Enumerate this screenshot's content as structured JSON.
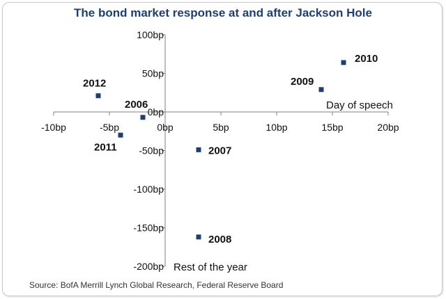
{
  "chart_data": {
    "type": "scatter",
    "title": "The bond market response at and after Jackson Hole",
    "xlabel": "Day of speech",
    "ylabel": "Rest of the year",
    "xlim": [
      -10,
      20
    ],
    "ylim": [
      -200,
      100
    ],
    "x_ticks": [
      -10,
      -5,
      0,
      5,
      10,
      15,
      20
    ],
    "y_ticks": [
      100,
      50,
      0,
      -50,
      -100,
      -150,
      -200
    ],
    "x_tick_labels": [
      "-10bp",
      "-5bp",
      "0bp",
      "5bp",
      "10bp",
      "15bp",
      "20bp"
    ],
    "y_tick_labels": [
      "100bp",
      "50bp",
      "0bp",
      "-50bp",
      "-100bp",
      "-150bp",
      "-200bp"
    ],
    "grid": false,
    "marker_color": "#1f3f6e",
    "points": [
      {
        "label": "2012",
        "x": -6.0,
        "y": 21
      },
      {
        "label": "2006",
        "x": -2.0,
        "y": -7
      },
      {
        "label": "2011",
        "x": -4.0,
        "y": -30
      },
      {
        "label": "2007",
        "x": 3.0,
        "y": -49
      },
      {
        "label": "2008",
        "x": 3.0,
        "y": -162
      },
      {
        "label": "2009",
        "x": 14.0,
        "y": 29
      },
      {
        "label": "2010",
        "x": 16.0,
        "y": 64
      }
    ]
  },
  "source": "Source: BofA Merrill Lynch Global Research, Federal Reserve Board"
}
